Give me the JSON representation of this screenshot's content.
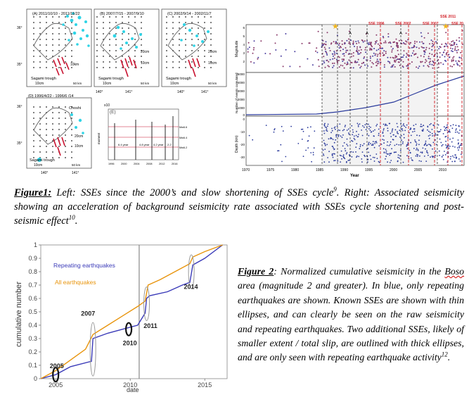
{
  "figure1": {
    "panels": [
      {
        "label": "(A) 2011/10/10 - 2011/11/22",
        "trough": "Sagami trough",
        "scale": "10cm",
        "dist": "50 km"
      },
      {
        "label": "(B) 2007/7/15 - 2007/9/10",
        "trough": "Sagami trough",
        "scale": "10cm",
        "dist": "50 km",
        "arrow_labels": [
          "20cm",
          "10cm"
        ]
      },
      {
        "label": "(C) 2002/9/14 - 2002/11/7",
        "trough": "Sagami trough",
        "scale": "10cm",
        "dist": "50 km",
        "arrow_labels": [
          "20cm",
          "10cm"
        ]
      },
      {
        "label": "(D) 1996/4/22 - 1996/6 /14",
        "trough": "Sagami trough",
        "scale": "10cm",
        "dist": "50 km",
        "place": "Choshi",
        "arrow_labels": [
          "20cm",
          "10cm"
        ]
      }
    ],
    "lat_labels": [
      "36°",
      "35°"
    ],
    "lon_labels": [
      "140°",
      "141°"
    ],
    "small_a_labels": [
      "10km",
      "50 km"
    ],
    "panel_e": {
      "label": "(E)",
      "exponent": "x10",
      "ylabel": "moment",
      "cycle_labels": [
        "6.4 year",
        "4.8 year",
        "4.2 year",
        "2.2"
      ],
      "mw_labels": [
        "Mw6.6",
        "Mw6.4",
        "Mw6.2"
      ],
      "xticks": [
        "1996",
        "2000",
        "2004",
        "2008",
        "2012",
        "2016"
      ]
    },
    "right": {
      "top_ylabel": "Magnitude",
      "top_yticks": [
        "6",
        "5",
        "4",
        "3",
        "2"
      ],
      "mid_ylabel": "Number of events cumulated",
      "mid_yticks": [
        "5000",
        "4000",
        "3000",
        "2000",
        "1000",
        "0"
      ],
      "bot_ylabel": "Depth (km)",
      "bot_yticks": [
        "0",
        "-10",
        "-20",
        "-30"
      ],
      "xticks": [
        "1970",
        "1975",
        "1980",
        "1985",
        "1990",
        "1995",
        "2000",
        "2005",
        "2010"
      ],
      "xlabel": "Year",
      "sse_labels": [
        "SSE 1996",
        "SSE 2002",
        "SSE 2007",
        "SSE 2011",
        "SSE 20"
      ],
      "a_labels": [
        "A",
        "A",
        "A"
      ]
    },
    "caption": {
      "fig": "Figure1:",
      "text_before": " Left: SSEs since the 2000’s and slow shortening of SSEs cycle",
      "ref1": "9",
      "text_mid": ". Right: Associated seismicity showing an acceleration of background seismicity rate associated with SSEs cycle shortening and post-seismic effect",
      "ref2": "10",
      "text_end": "."
    }
  },
  "figure2": {
    "chart_data": {
      "type": "line",
      "ylabel": "cumulative number",
      "xlabel": "date",
      "x_ticks": [
        "2005",
        "2010",
        "2015"
      ],
      "y_ticks": [
        "0",
        "0.1",
        "0.2",
        "0.3",
        "0.4",
        "0.5",
        "0.6",
        "0.7",
        "0.8",
        "0.9",
        "1"
      ],
      "ylim": [
        0,
        1
      ],
      "xlim": [
        2004,
        2016.5
      ],
      "series": [
        {
          "name": "Repeating earthquakes",
          "color": "#3a3ab8",
          "x": [
            2004.0,
            2005.0,
            2006.0,
            2007.4,
            2007.5,
            2008.5,
            2009.5,
            2010.5,
            2011.0,
            2011.1,
            2011.3,
            2012.5,
            2013.5,
            2014.0,
            2014.2,
            2015.0,
            2016.2
          ],
          "y": [
            0.0,
            0.03,
            0.09,
            0.13,
            0.3,
            0.34,
            0.37,
            0.4,
            0.49,
            0.6,
            0.62,
            0.65,
            0.7,
            0.72,
            0.85,
            0.9,
            1.0
          ]
        },
        {
          "name": "All earthquakes",
          "color": "#e8940c",
          "x": [
            2004.0,
            2005.0,
            2006.0,
            2007.0,
            2007.5,
            2008.5,
            2009.5,
            2010.5,
            2011.0,
            2011.2,
            2012.0,
            2013.0,
            2014.0,
            2014.2,
            2015.0,
            2016.2
          ],
          "y": [
            0.0,
            0.06,
            0.14,
            0.22,
            0.33,
            0.4,
            0.47,
            0.54,
            0.58,
            0.7,
            0.74,
            0.8,
            0.86,
            0.91,
            0.95,
            1.0
          ]
        }
      ],
      "annotations": [
        "2005",
        "2007",
        "2010",
        "2011",
        "2014"
      ]
    },
    "caption": {
      "fig": "Figure 2",
      "t1": ": Normalized cumulative seismicity in the ",
      "boso": "Boso",
      "t2": " area (magnitude 2 and greater). In blue, only repeating earthquakes are shown. Known SSEs are shown with thin ellipses, and can clearly be seen on the raw seismicity and repeating earthquakes. Two additional SSEs, likely of smaller extent / total slip, are outlined with thick ellipses, and are only seen with repeating earthquake activity",
      "ref": "12",
      "t3": "."
    }
  }
}
